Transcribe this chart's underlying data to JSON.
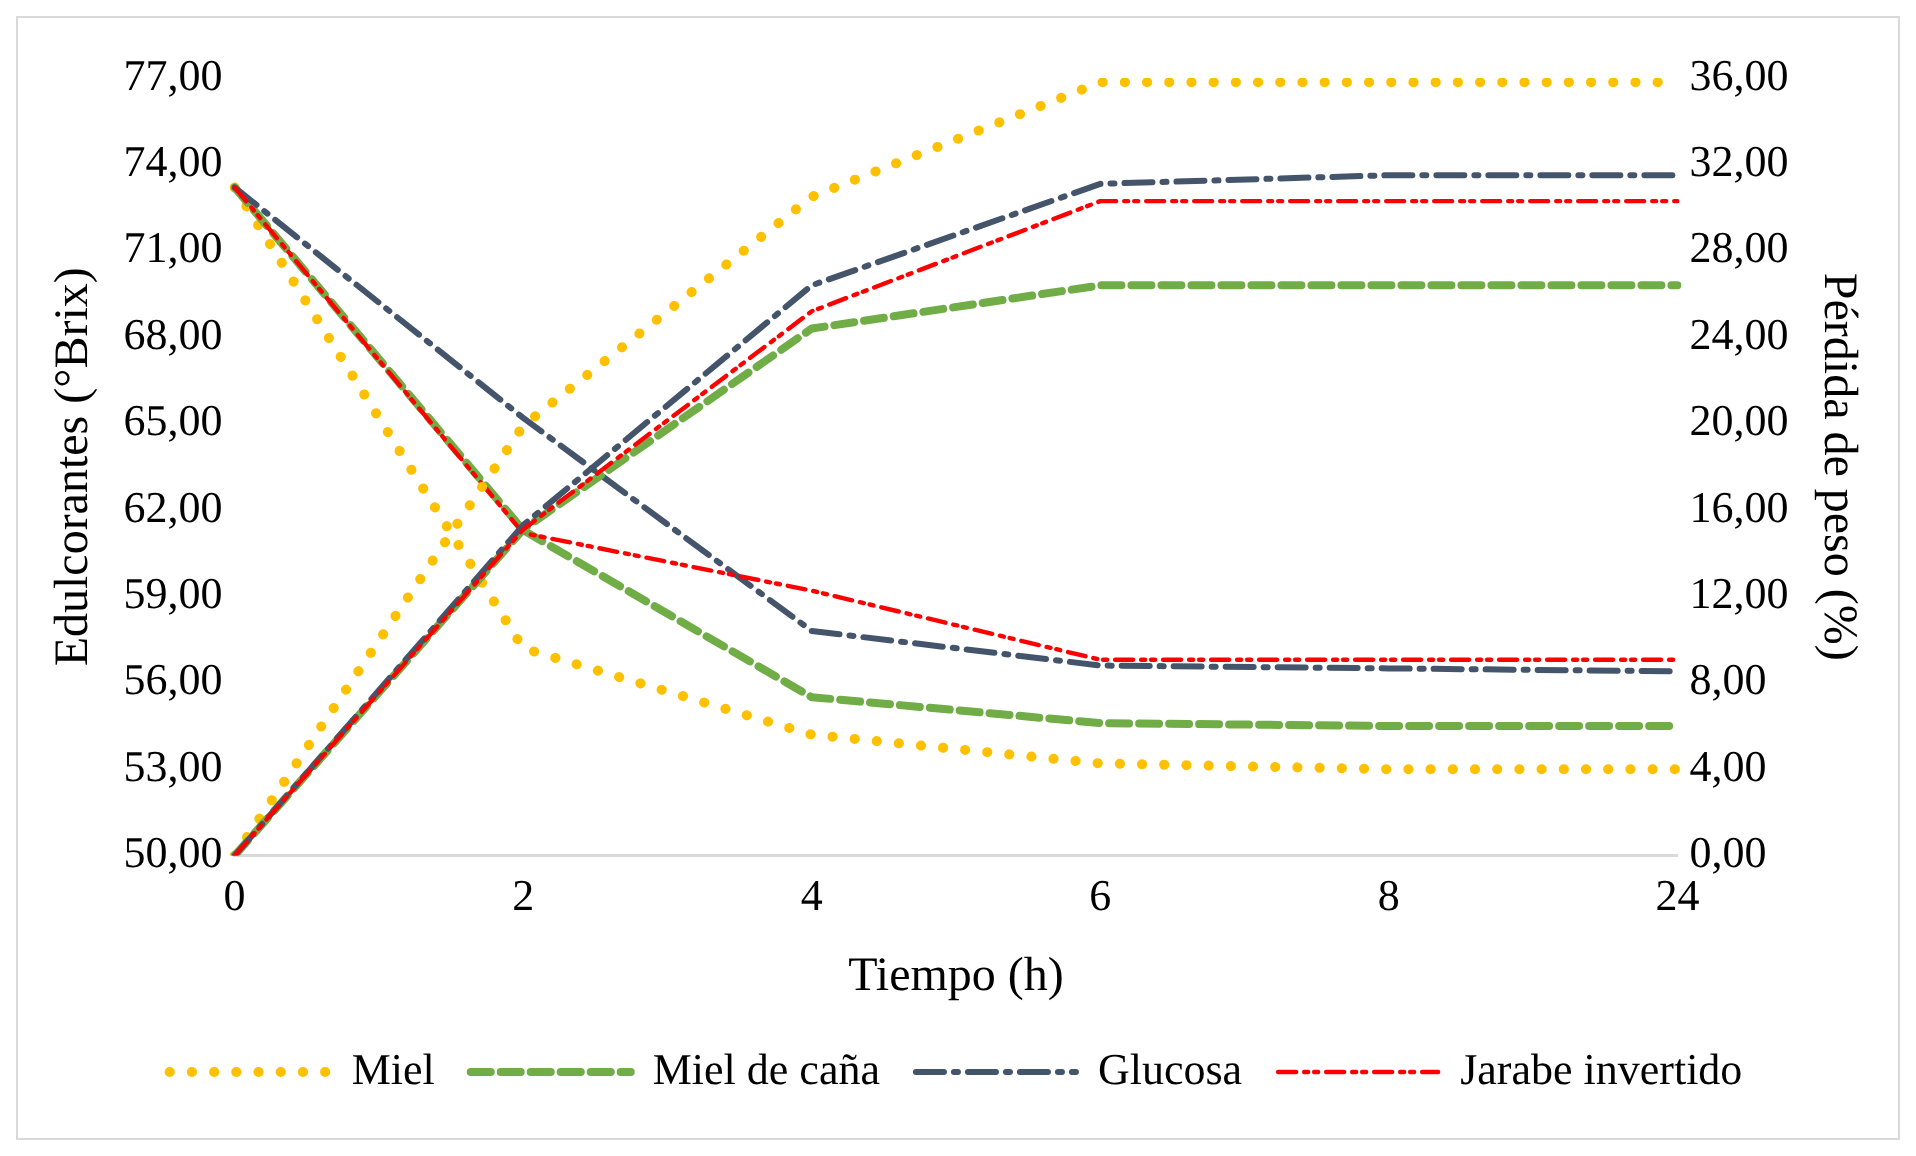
{
  "chart_data": {
    "type": "line",
    "xlabel": "Tiempo (h)",
    "ylabel": "Edulcorantes (°Brix)",
    "y2label": "Pérdida de peso (%)",
    "categories": [
      "0",
      "2",
      "4",
      "6",
      "8",
      "24"
    ],
    "series": [
      {
        "name": "Miel",
        "color": "#ffc000",
        "line_style": "dotted",
        "values": [
          73.2,
          57.2,
          54.2,
          53.2,
          53.0,
          53.0
        ]
      },
      {
        "name": "Miel de caña",
        "color": "#70ad47",
        "line_style": "dashed",
        "values": [
          73.2,
          61.3,
          55.5,
          54.6,
          54.5,
          54.5
        ]
      },
      {
        "name": "Glucosa",
        "color": "#44546a",
        "line_style": "dashed",
        "values": [
          73.2,
          65.2,
          57.8,
          56.6,
          56.5,
          56.4
        ]
      },
      {
        "name": "Jarabe invertido",
        "color": "#ff0000",
        "line_style": "dashed",
        "values": [
          73.2,
          61.2,
          59.2,
          56.8,
          56.8,
          56.8
        ]
      },
      {
        "color": "#ffc000",
        "line_style": "dotted",
        "axis": "y2",
        "values": [
          0,
          19.9,
          30.5,
          35.8,
          35.8,
          35.8
        ]
      },
      {
        "color": "#70ad47",
        "line_style": "dashed",
        "axis": "y2",
        "values": [
          0,
          15.1,
          24.4,
          26.4,
          26.4,
          26.4
        ]
      },
      {
        "color": "#44546a",
        "line_style": "dashed",
        "axis": "y2",
        "values": [
          0,
          15.3,
          26.4,
          31.1,
          31.5,
          31.5
        ]
      },
      {
        "color": "#ff0000",
        "line_style": "dashed",
        "axis": "y2",
        "values": [
          0,
          15.1,
          25.2,
          30.3,
          30.3,
          30.3
        ]
      }
    ],
    "ylim": [
      50,
      77
    ],
    "yticks": [
      {
        "value": 50,
        "label": "50,00"
      },
      {
        "value": 53,
        "label": "53,00"
      },
      {
        "value": 56,
        "label": "56,00"
      },
      {
        "value": 59,
        "label": "59,00"
      },
      {
        "value": 62,
        "label": "62,00"
      },
      {
        "value": 65,
        "label": "65,00"
      },
      {
        "value": 68,
        "label": "68,00"
      },
      {
        "value": 71,
        "label": "71,00"
      },
      {
        "value": 74,
        "label": "74,00"
      },
      {
        "value": 77,
        "label": "77,00"
      }
    ],
    "y2lim": [
      0,
      36
    ],
    "y2ticks": [
      {
        "value": 0,
        "label": "0,00"
      },
      {
        "value": 4,
        "label": "4,00"
      },
      {
        "value": 8,
        "label": "8,00"
      },
      {
        "value": 12,
        "label": "12,00"
      },
      {
        "value": 16,
        "label": "16,00"
      },
      {
        "value": 20,
        "label": "20,00"
      },
      {
        "value": 24,
        "label": "24,00"
      },
      {
        "value": 28,
        "label": "28,00"
      },
      {
        "value": 32,
        "label": "32,00"
      },
      {
        "value": 36,
        "label": "36,00"
      }
    ],
    "grid": false,
    "legend": "bottom",
    "marker": "none"
  }
}
